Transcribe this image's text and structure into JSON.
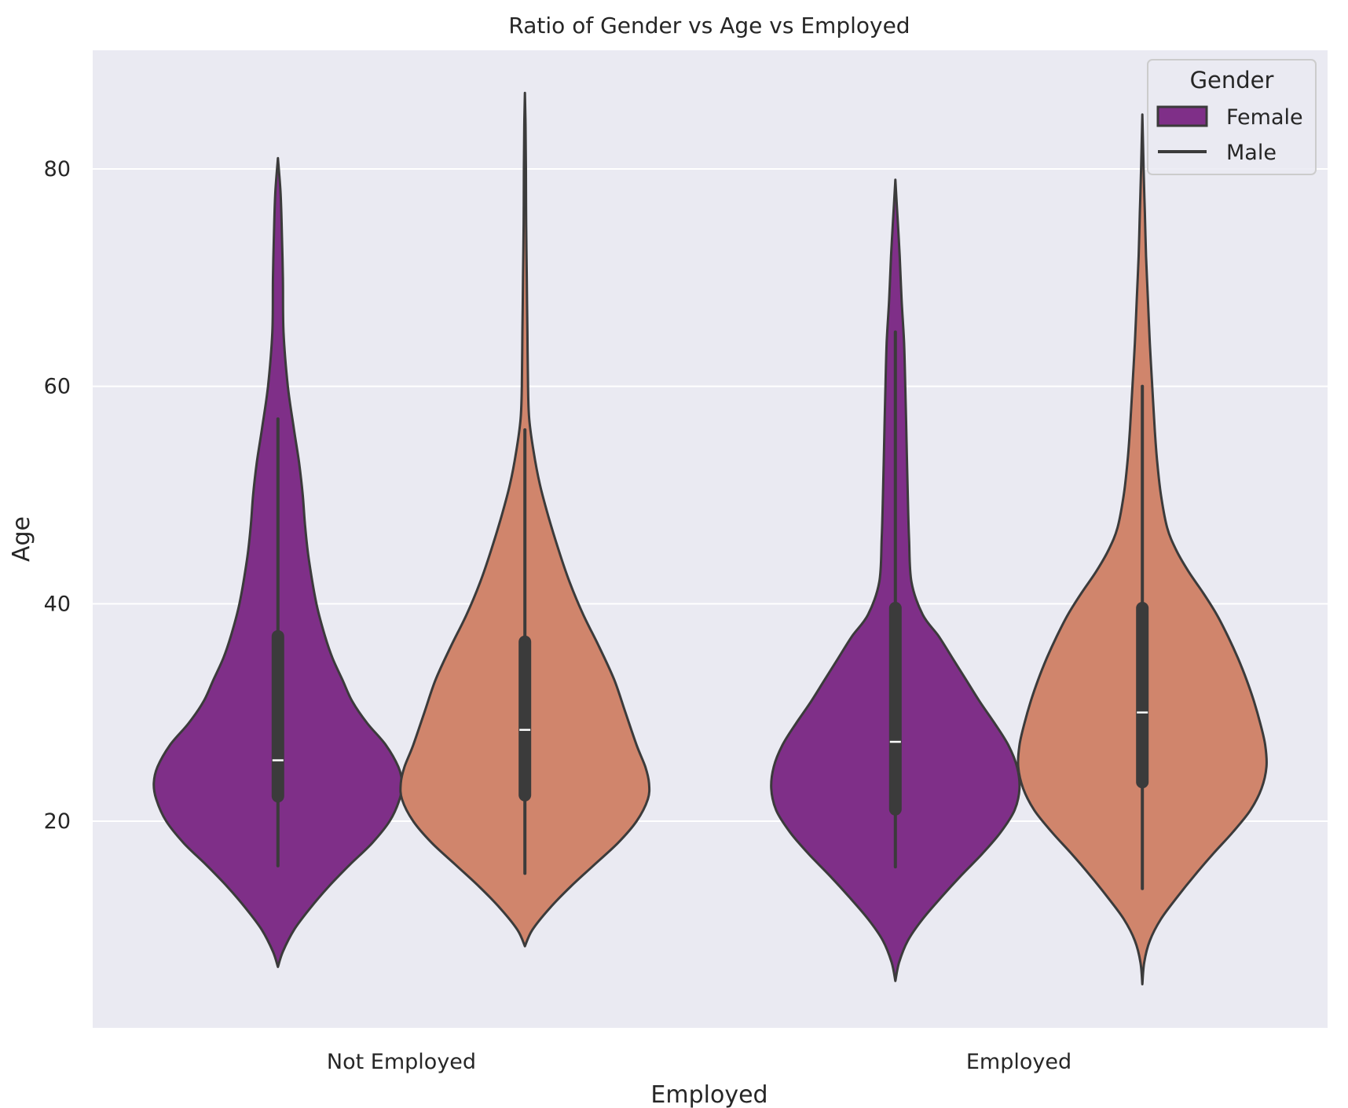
{
  "chart_data": {
    "type": "violin",
    "title": "Ratio of Gender vs Age vs Employed",
    "xlabel": "Employed",
    "ylabel": "Age",
    "categories": [
      "Not Employed",
      "Employed"
    ],
    "y_ticks": [
      20,
      40,
      60,
      80
    ],
    "ylim": [
      3,
      91
    ],
    "grid": true,
    "legend": {
      "title": "Gender",
      "placement": "top-right",
      "entries": [
        {
          "label": "Female",
          "color": "#7f2f88"
        },
        {
          "label": "Male",
          "color": "#d0856c"
        }
      ]
    },
    "colors": {
      "background": "#eaeaf2",
      "grid": "#ffffff",
      "outline": "#3b3b3b",
      "Female": "#7f2f88",
      "Male": "#d0856c"
    },
    "series": [
      {
        "gender": "Female",
        "category": "Not Employed",
        "color": "#7f2f88",
        "box": {
          "whisker_low": 15.9,
          "q1": 22.3,
          "median": 25.6,
          "q3": 37.0,
          "whisker_high": 57.0
        },
        "density": [
          [
            6.6,
            0
          ],
          [
            8,
            0.04
          ],
          [
            10,
            0.13
          ],
          [
            12,
            0.26
          ],
          [
            14,
            0.41
          ],
          [
            16,
            0.58
          ],
          [
            18,
            0.76
          ],
          [
            20,
            0.9
          ],
          [
            22,
            0.98
          ],
          [
            23.5,
            1.0
          ],
          [
            25,
            0.97
          ],
          [
            27,
            0.87
          ],
          [
            29,
            0.72
          ],
          [
            31,
            0.6
          ],
          [
            33,
            0.52
          ],
          [
            35,
            0.44
          ],
          [
            37,
            0.38
          ],
          [
            40,
            0.31
          ],
          [
            44,
            0.25
          ],
          [
            47,
            0.22
          ],
          [
            50,
            0.2
          ],
          [
            53,
            0.17
          ],
          [
            56,
            0.13
          ],
          [
            60,
            0.08
          ],
          [
            65,
            0.045
          ],
          [
            70,
            0.04
          ],
          [
            75,
            0.03
          ],
          [
            78,
            0.02
          ],
          [
            81,
            0
          ]
        ]
      },
      {
        "gender": "Male",
        "category": "Not Employed",
        "color": "#d0856c",
        "box": {
          "whisker_low": 15.2,
          "q1": 22.4,
          "median": 28.4,
          "q3": 36.5,
          "whisker_high": 56.0
        },
        "density": [
          [
            8.5,
            0
          ],
          [
            10,
            0.06
          ],
          [
            12,
            0.2
          ],
          [
            14,
            0.37
          ],
          [
            16,
            0.56
          ],
          [
            18,
            0.75
          ],
          [
            20,
            0.9
          ],
          [
            22,
            0.99
          ],
          [
            23.5,
            1.0
          ],
          [
            25,
            0.97
          ],
          [
            27,
            0.9
          ],
          [
            30,
            0.81
          ],
          [
            33,
            0.72
          ],
          [
            36,
            0.6
          ],
          [
            39,
            0.47
          ],
          [
            42,
            0.36
          ],
          [
            45,
            0.27
          ],
          [
            48,
            0.19
          ],
          [
            51,
            0.12
          ],
          [
            54,
            0.07
          ],
          [
            57,
            0.035
          ],
          [
            60,
            0.025
          ],
          [
            65,
            0.02
          ],
          [
            70,
            0.015
          ],
          [
            75,
            0.01
          ],
          [
            80,
            0.008
          ],
          [
            84,
            0.005
          ],
          [
            87,
            0
          ]
        ]
      },
      {
        "gender": "Female",
        "category": "Employed",
        "color": "#7f2f88",
        "box": {
          "whisker_low": 15.8,
          "q1": 21.1,
          "median": 27.3,
          "q3": 39.6,
          "whisker_high": 65.0
        },
        "density": [
          [
            5.3,
            0
          ],
          [
            7,
            0.03
          ],
          [
            9,
            0.1
          ],
          [
            11,
            0.22
          ],
          [
            13,
            0.37
          ],
          [
            15,
            0.53
          ],
          [
            17,
            0.7
          ],
          [
            19,
            0.85
          ],
          [
            21,
            0.96
          ],
          [
            23,
            1.0
          ],
          [
            25,
            0.98
          ],
          [
            27,
            0.91
          ],
          [
            29,
            0.8
          ],
          [
            31,
            0.68
          ],
          [
            33,
            0.57
          ],
          [
            35,
            0.46
          ],
          [
            37,
            0.35
          ],
          [
            39,
            0.22
          ],
          [
            42,
            0.13
          ],
          [
            46,
            0.11
          ],
          [
            50,
            0.1
          ],
          [
            55,
            0.09
          ],
          [
            60,
            0.08
          ],
          [
            64,
            0.07
          ],
          [
            68,
            0.05
          ],
          [
            72,
            0.035
          ],
          [
            75,
            0.02
          ],
          [
            79,
            0
          ]
        ]
      },
      {
        "gender": "Male",
        "category": "Employed",
        "color": "#d0856c",
        "box": {
          "whisker_low": 13.8,
          "q1": 23.6,
          "median": 30.0,
          "q3": 39.6,
          "whisker_high": 60.0
        },
        "density": [
          [
            5.0,
            0
          ],
          [
            7,
            0.015
          ],
          [
            9,
            0.06
          ],
          [
            11,
            0.15
          ],
          [
            13,
            0.28
          ],
          [
            15,
            0.42
          ],
          [
            17,
            0.57
          ],
          [
            19,
            0.73
          ],
          [
            21,
            0.87
          ],
          [
            23,
            0.96
          ],
          [
            25,
            1.0
          ],
          [
            27,
            0.99
          ],
          [
            29,
            0.95
          ],
          [
            31,
            0.9
          ],
          [
            33,
            0.84
          ],
          [
            35,
            0.77
          ],
          [
            37,
            0.69
          ],
          [
            39,
            0.6
          ],
          [
            41,
            0.49
          ],
          [
            43,
            0.37
          ],
          [
            45,
            0.27
          ],
          [
            47,
            0.2
          ],
          [
            50,
            0.15
          ],
          [
            53,
            0.12
          ],
          [
            56,
            0.1
          ],
          [
            60,
            0.08
          ],
          [
            64,
            0.06
          ],
          [
            68,
            0.045
          ],
          [
            72,
            0.03
          ],
          [
            76,
            0.02
          ],
          [
            80,
            0.01
          ],
          [
            85,
            0
          ]
        ]
      }
    ]
  }
}
